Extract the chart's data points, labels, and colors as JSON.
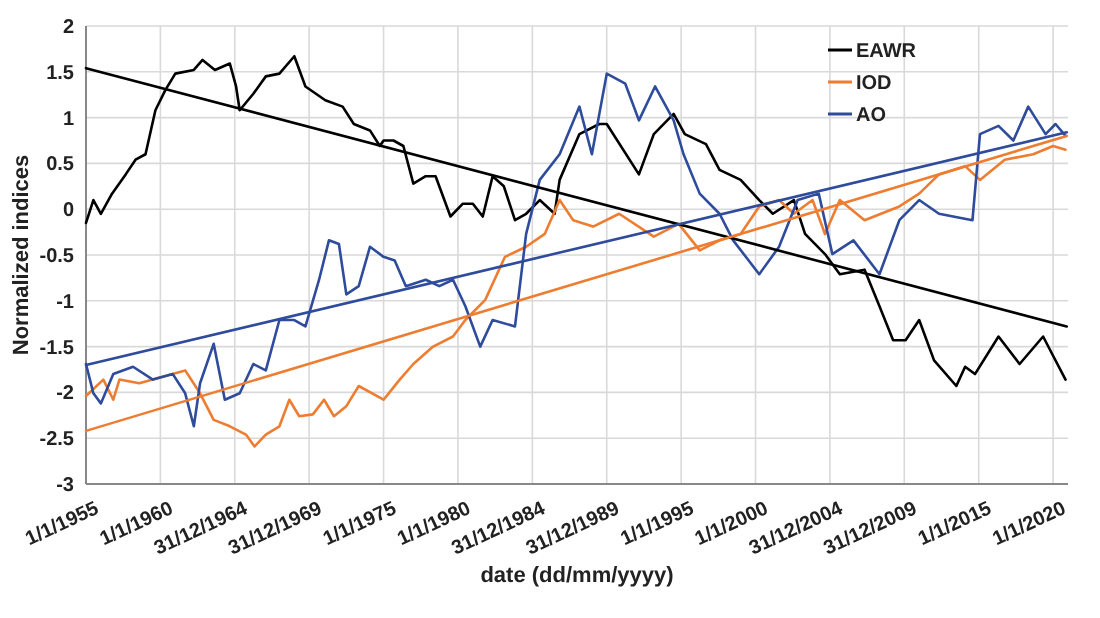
{
  "chart_data": {
    "type": "line",
    "xlabel": "date (dd/mm/yyyy)",
    "ylabel": "Normalized indices",
    "xlim": [
      "1955-01-01",
      "2021-01-01"
    ],
    "ylim": [
      -3,
      2
    ],
    "xticks": [
      {
        "value": "1955-01-01",
        "label": "1/1/1955"
      },
      {
        "value": "1960-01-01",
        "label": "1/1/1960"
      },
      {
        "value": "1964-12-31",
        "label": "31/12/1964"
      },
      {
        "value": "1969-12-31",
        "label": "31/12/1969"
      },
      {
        "value": "1975-01-01",
        "label": "1/1/1975"
      },
      {
        "value": "1980-01-01",
        "label": "1/1/1980"
      },
      {
        "value": "1984-12-31",
        "label": "31/12/1984"
      },
      {
        "value": "1989-12-31",
        "label": "31/12/1989"
      },
      {
        "value": "1995-01-01",
        "label": "1/1/1995"
      },
      {
        "value": "2000-01-01",
        "label": "1/1/2000"
      },
      {
        "value": "2004-12-31",
        "label": "31/12/2004"
      },
      {
        "value": "2009-12-31",
        "label": "31/12/2009"
      },
      {
        "value": "2015-01-01",
        "label": "1/1/2015"
      },
      {
        "value": "2020-01-01",
        "label": "1/1/2020"
      }
    ],
    "yticks": [
      -3,
      -2.5,
      -2,
      -1.5,
      -1,
      -0.5,
      0,
      0.5,
      1,
      1.5,
      2
    ],
    "grid": true,
    "legend": "top right",
    "marker": "none",
    "line_style": "solid",
    "series": [
      {
        "name": "EAWR",
        "color": "#000000",
        "x": [
          "1955-01",
          "1955-07",
          "1956-01",
          "1956-10",
          "1957-09",
          "1958-05",
          "1959-01",
          "1959-09",
          "1960-05",
          "1961-01",
          "1962-04",
          "1962-11",
          "1963-09",
          "1964-09",
          "1965-02",
          "1965-05",
          "1966-04",
          "1967-02",
          "1968-01",
          "1969-01",
          "1969-10",
          "1971-02",
          "1972-04",
          "1973-01",
          "1974-02",
          "1974-10",
          "1975-01",
          "1975-09",
          "1976-05",
          "1977-01",
          "1977-11",
          "1978-07",
          "1979-07",
          "1980-05",
          "1981-01",
          "1981-09",
          "1982-05",
          "1983-02",
          "1983-11",
          "1984-08",
          "1985-07",
          "1986-07",
          "1986-11",
          "1988-03",
          "1989-07",
          "1990-01",
          "1992-03",
          "1993-03",
          "1994-07",
          "1995-04",
          "1996-09",
          "1997-08",
          "1999-01",
          "2000-04",
          "2001-03",
          "2002-08",
          "2003-05",
          "2004-09",
          "2005-09",
          "2007-05",
          "2008-05",
          "2009-04",
          "2010-02",
          "2011-01",
          "2012-01",
          "2013-07",
          "2014-02",
          "2014-10",
          "2016-05",
          "2017-10",
          "2019-05",
          "2020-01",
          "2020-11"
        ],
        "values": [
          -0.15,
          0.1,
          -0.05,
          0.17,
          0.38,
          0.54,
          0.6,
          1.08,
          1.3,
          1.48,
          1.52,
          1.63,
          1.52,
          1.59,
          1.34,
          1.08,
          1.26,
          1.45,
          1.48,
          1.67,
          1.34,
          1.19,
          1.12,
          0.93,
          0.86,
          0.69,
          0.75,
          0.75,
          0.69,
          0.28,
          0.36,
          0.36,
          -0.08,
          0.06,
          0.06,
          -0.08,
          0.36,
          0.25,
          -0.12,
          -0.05,
          0.1,
          -0.05,
          0.32,
          0.82,
          0.93,
          0.93,
          0.38,
          0.82,
          1.04,
          0.82,
          0.71,
          0.43,
          0.32,
          0.1,
          -0.05,
          0.1,
          -0.27,
          -0.49,
          -0.71,
          -0.66,
          -1.06,
          -1.43,
          -1.43,
          -1.21,
          -1.65,
          -1.93,
          -1.72,
          -1.8,
          -1.39,
          -1.69,
          -1.39,
          -1.6,
          -1.86
        ]
      },
      {
        "name": "IOD",
        "color": "#ed7d31",
        "x": [
          "1955-01",
          "1956-03",
          "1956-11",
          "1957-04",
          "1958-08",
          "1960-05",
          "1961-09",
          "1962-09",
          "1963-08",
          "1964-09",
          "1965-10",
          "1966-05",
          "1967-02",
          "1968-01",
          "1968-09",
          "1969-05",
          "1970-04",
          "1971-01",
          "1971-09",
          "1972-07",
          "1973-05",
          "1975-01",
          "1976-02",
          "1977-01",
          "1978-05",
          "1979-09",
          "1980-07",
          "1981-11",
          "1983-03",
          "1984-08",
          "1985-11",
          "1986-11",
          "1987-10",
          "1989-02",
          "1990-11",
          "1993-03",
          "1994-11",
          "1996-04",
          "1997-08",
          "1999-01",
          "2000-04",
          "2001-08",
          "2002-08",
          "2003-11",
          "2004-09",
          "2005-09",
          "2007-05",
          "2009-09",
          "2011-01",
          "2012-05",
          "2014-02",
          "2015-02",
          "2016-10",
          "2018-09",
          "2020-01",
          "2020-11"
        ],
        "values": [
          -2.04,
          -1.86,
          -2.08,
          -1.86,
          -1.9,
          -1.82,
          -1.76,
          -2.01,
          -2.3,
          -2.37,
          -2.46,
          -2.59,
          -2.46,
          -2.37,
          -2.08,
          -2.26,
          -2.24,
          -2.08,
          -2.26,
          -2.15,
          -1.93,
          -2.08,
          -1.86,
          -1.69,
          -1.5,
          -1.39,
          -1.21,
          -0.99,
          -0.52,
          -0.41,
          -0.27,
          0.1,
          -0.12,
          -0.19,
          -0.05,
          -0.3,
          -0.16,
          -0.45,
          -0.34,
          -0.27,
          0.03,
          0.1,
          -0.05,
          0.1,
          -0.27,
          0.1,
          -0.12,
          0.03,
          0.17,
          0.38,
          0.47,
          0.32,
          0.54,
          0.6,
          0.69,
          0.65
        ]
      },
      {
        "name": "AO",
        "color": "#2f4b9b",
        "x": [
          "1955-01",
          "1955-07",
          "1956-01",
          "1956-11",
          "1958-03",
          "1959-07",
          "1960-11",
          "1961-09",
          "1962-04",
          "1962-09",
          "1963-08",
          "1964-05",
          "1965-05",
          "1966-04",
          "1967-02",
          "1968-01",
          "1969-01",
          "1969-10",
          "1970-09",
          "1971-05",
          "1972-01",
          "1972-07",
          "1973-05",
          "1974-02",
          "1975-01",
          "1975-10",
          "1976-07",
          "1977-11",
          "1978-10",
          "1979-09",
          "1980-07",
          "1981-07",
          "1982-05",
          "1983-11",
          "1984-08",
          "1985-07",
          "1986-11",
          "1988-03",
          "1989-01",
          "1990-01",
          "1991-04",
          "1992-03",
          "1993-04",
          "1994-07",
          "1995-03",
          "1996-04",
          "1997-08",
          "1998-07",
          "2000-04",
          "2001-08",
          "2002-11",
          "2004-04",
          "2005-03",
          "2006-08",
          "2008-05",
          "2009-09",
          "2011-01",
          "2012-05",
          "2014-08",
          "2015-02",
          "2016-05",
          "2017-05",
          "2018-05",
          "2019-07",
          "2020-03",
          "2020-11"
        ],
        "values": [
          -1.69,
          -2.01,
          -2.12,
          -1.8,
          -1.72,
          -1.86,
          -1.8,
          -2.01,
          -2.37,
          -1.9,
          -1.47,
          -2.08,
          -2.01,
          -1.69,
          -1.76,
          -1.21,
          -1.21,
          -1.28,
          -0.77,
          -0.34,
          -0.38,
          -0.93,
          -0.84,
          -0.41,
          -0.52,
          -0.56,
          -0.84,
          -0.77,
          -0.84,
          -0.77,
          -1.06,
          -1.5,
          -1.21,
          -1.28,
          -0.27,
          0.32,
          0.6,
          1.12,
          0.6,
          1.48,
          1.37,
          0.97,
          1.34,
          0.97,
          0.6,
          0.17,
          -0.05,
          -0.34,
          -0.71,
          -0.41,
          0.1,
          0.17,
          -0.49,
          -0.34,
          -0.71,
          -0.12,
          0.1,
          -0.05,
          -0.12,
          0.82,
          0.91,
          0.75,
          1.12,
          0.82,
          0.93,
          0.8
        ]
      },
      {
        "type": "line",
        "color": "#000000",
        "x": [
          "1955-01",
          "2020-12"
        ],
        "values": [
          1.54,
          -1.28
        ]
      },
      {
        "type": "line",
        "color": "#ed7d31",
        "x": [
          "1955-01",
          "2020-12"
        ],
        "values": [
          -2.42,
          0.8
        ]
      },
      {
        "type": "line",
        "color": "#2f4b9b",
        "x": [
          "1955-01",
          "2020-12"
        ],
        "values": [
          -1.7,
          0.84
        ]
      }
    ]
  }
}
